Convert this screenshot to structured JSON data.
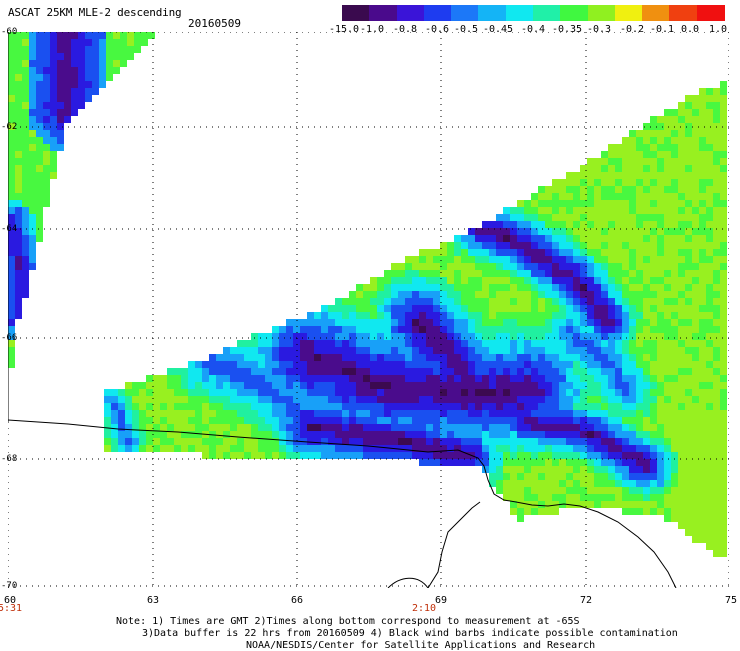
{
  "header": {
    "title": "ASCAT 25KM MLE-2 descending",
    "date": "20160509"
  },
  "colorbar": {
    "labels": [
      "-15.0",
      "-1.0",
      "-0.8",
      "-0.6",
      "-0.5",
      "-0.45",
      "-0.4",
      "-0.35",
      "-0.3",
      "-0.2",
      "-0.1",
      "0.0",
      "1.0"
    ],
    "colors": [
      "#3a0a4e",
      "#4a0a8c",
      "#3a14d8",
      "#1e3cf0",
      "#1c78f8",
      "#14b4f6",
      "#10e8f0",
      "#20f0a8",
      "#40f840",
      "#90f020",
      "#f0f010",
      "#f09010",
      "#f04010",
      "#f01010"
    ]
  },
  "map": {
    "lat_labels": [
      "-60",
      "-62",
      "-64",
      "-66",
      "-68",
      "-70"
    ],
    "lon_labels": [
      "60",
      "63",
      "66",
      "69",
      "72",
      "75"
    ],
    "time_labels": [
      "5:31",
      "2:10"
    ],
    "colors": {
      "deep_purple": "#3c0a50",
      "purple": "#4a0c8c",
      "blue": "#2a1ae0",
      "mid_blue": "#1a50f0",
      "light_blue": "#18a0f8",
      "cyan": "#10e8f0",
      "aqua_green": "#20f0a0",
      "green": "#48f840",
      "yellow_green": "#98f020"
    }
  },
  "notes": {
    "line1": "Note: 1) Times are GMT 2)Times along bottom correspond to measurement at -65S",
    "line2": "3)Data buffer is 22 hrs from 20160509 4) Black wind barbs indicate possible contamination",
    "line3": "NOAA/NESDIS/Center for Satellite Applications and Research"
  }
}
